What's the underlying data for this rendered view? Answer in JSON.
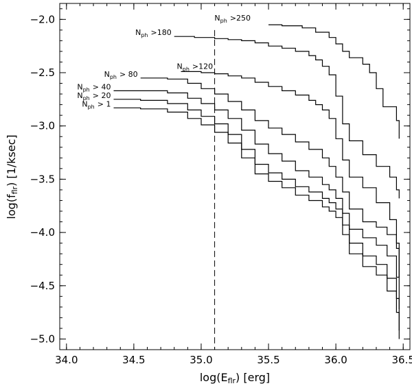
{
  "chart_data": {
    "type": "line",
    "line_style": "step",
    "xlabel_main": "log(E",
    "xlabel_sub": "flr",
    "xlabel_tail": ") [erg]",
    "ylabel_main": "log(f",
    "ylabel_sub": "flr",
    "ylabel_tail": ") [1/ksec]",
    "xlim": [
      33.95,
      36.55
    ],
    "ylim": [
      -5.1,
      -1.85
    ],
    "x_ticks": [
      34.0,
      34.5,
      35.0,
      35.5,
      36.0,
      36.5
    ],
    "x_tick_labels": [
      "34.0",
      "34.5",
      "35.0",
      "35.5",
      "36.0",
      "36.5"
    ],
    "y_ticks": [
      -2.0,
      -2.5,
      -3.0,
      -3.5,
      -4.0,
      -4.5,
      -5.0
    ],
    "y_tick_labels": [
      "−2.0",
      "−2.5",
      "−3.0",
      "−3.5",
      "−4.0",
      "−4.5",
      "−5.0"
    ],
    "grid": false,
    "vertical_line": {
      "x": 35.1,
      "style": "dashed"
    },
    "series": [
      {
        "name": "> 1",
        "label_prefix": "N",
        "label_sub": "ph",
        "label_tail": "> 1",
        "x": [
          34.35,
          34.55,
          34.75,
          34.9,
          35.0,
          35.1,
          35.2,
          35.3,
          35.4,
          35.5,
          35.6,
          35.7,
          35.8,
          35.9,
          35.95,
          36.0,
          36.05,
          36.1,
          36.2,
          36.3,
          36.38,
          36.45,
          36.47
        ],
        "y": [
          -2.83,
          -2.84,
          -2.87,
          -2.93,
          -2.99,
          -3.06,
          -3.16,
          -3.3,
          -3.45,
          -3.52,
          -3.58,
          -3.65,
          -3.7,
          -3.76,
          -3.8,
          -3.86,
          -4.02,
          -4.2,
          -4.32,
          -4.4,
          -4.55,
          -4.75,
          -5.0
        ]
      },
      {
        "name": "> 20",
        "label_prefix": "N",
        "label_sub": "ph",
        "label_tail": "> 20",
        "x": [
          34.35,
          34.55,
          34.75,
          34.9,
          35.0,
          35.1,
          35.2,
          35.3,
          35.4,
          35.5,
          35.6,
          35.7,
          35.8,
          35.9,
          35.95,
          36.0,
          36.05,
          36.1,
          36.2,
          36.3,
          36.38,
          36.45,
          36.47
        ],
        "y": [
          -2.75,
          -2.76,
          -2.79,
          -2.85,
          -2.91,
          -2.98,
          -3.08,
          -3.22,
          -3.36,
          -3.44,
          -3.5,
          -3.57,
          -3.62,
          -3.68,
          -3.72,
          -3.78,
          -3.93,
          -4.1,
          -4.22,
          -4.3,
          -4.43,
          -4.62,
          -4.92
        ]
      },
      {
        "name": "> 40",
        "label_prefix": "N",
        "label_sub": "ph",
        "label_tail": "> 40",
        "x": [
          34.35,
          34.55,
          34.75,
          34.9,
          35.0,
          35.1,
          35.2,
          35.3,
          35.4,
          35.5,
          35.6,
          35.7,
          35.8,
          35.9,
          35.95,
          36.0,
          36.05,
          36.1,
          36.2,
          36.3,
          36.38,
          36.45,
          36.47
        ],
        "y": [
          -2.67,
          -2.67,
          -2.69,
          -2.74,
          -2.79,
          -2.85,
          -2.93,
          -3.04,
          -3.17,
          -3.26,
          -3.33,
          -3.42,
          -3.48,
          -3.55,
          -3.6,
          -3.68,
          -3.82,
          -3.97,
          -4.05,
          -4.12,
          -4.22,
          -4.42,
          -4.72
        ]
      },
      {
        "name": "> 80",
        "label_prefix": "N",
        "label_sub": "ph",
        "label_tail": "> 80",
        "x": [
          34.55,
          34.75,
          34.9,
          35.0,
          35.1,
          35.2,
          35.3,
          35.4,
          35.5,
          35.6,
          35.7,
          35.8,
          35.9,
          35.95,
          36.0,
          36.05,
          36.1,
          36.2,
          36.3,
          36.38,
          36.45,
          36.47
        ],
        "y": [
          -2.55,
          -2.56,
          -2.6,
          -2.65,
          -2.7,
          -2.77,
          -2.85,
          -2.95,
          -3.02,
          -3.08,
          -3.15,
          -3.22,
          -3.3,
          -3.38,
          -3.48,
          -3.62,
          -3.78,
          -3.9,
          -3.95,
          -4.02,
          -4.15,
          -4.42
        ]
      },
      {
        "name": ">120",
        "label_prefix": "N",
        "label_sub": "ph",
        "label_tail": ">120",
        "x": [
          34.85,
          35.0,
          35.1,
          35.2,
          35.3,
          35.4,
          35.5,
          35.6,
          35.7,
          35.8,
          35.85,
          35.9,
          35.95,
          36.0,
          36.05,
          36.1,
          36.2,
          36.3,
          36.4,
          36.45,
          36.47
        ],
        "y": [
          -2.49,
          -2.5,
          -2.51,
          -2.53,
          -2.55,
          -2.59,
          -2.63,
          -2.67,
          -2.71,
          -2.76,
          -2.8,
          -2.85,
          -2.93,
          -3.12,
          -3.32,
          -3.48,
          -3.58,
          -3.72,
          -3.88,
          -4.1,
          -4.42
        ]
      },
      {
        "name": ">180",
        "label_prefix": "N",
        "label_sub": "ph",
        "label_tail": ">180",
        "x": [
          34.8,
          34.95,
          35.1,
          35.2,
          35.3,
          35.4,
          35.5,
          35.6,
          35.7,
          35.8,
          35.85,
          35.9,
          35.95,
          36.0,
          36.05,
          36.1,
          36.2,
          36.3,
          36.4,
          36.45,
          36.47
        ],
        "y": [
          -2.16,
          -2.17,
          -2.18,
          -2.19,
          -2.2,
          -2.22,
          -2.25,
          -2.27,
          -2.3,
          -2.34,
          -2.38,
          -2.44,
          -2.52,
          -2.72,
          -2.98,
          -3.14,
          -3.27,
          -3.38,
          -3.48,
          -3.6,
          -3.68
        ]
      },
      {
        "name": ">250",
        "label_prefix": "N",
        "label_sub": "ph",
        "label_tail": ">250",
        "x": [
          35.5,
          35.6,
          35.75,
          35.85,
          35.95,
          36.0,
          36.05,
          36.1,
          36.2,
          36.25,
          36.3,
          36.35,
          36.45,
          36.47
        ],
        "y": [
          -2.05,
          -2.06,
          -2.08,
          -2.12,
          -2.17,
          -2.23,
          -2.3,
          -2.36,
          -2.42,
          -2.5,
          -2.65,
          -2.82,
          -2.95,
          -3.12
        ]
      }
    ]
  }
}
